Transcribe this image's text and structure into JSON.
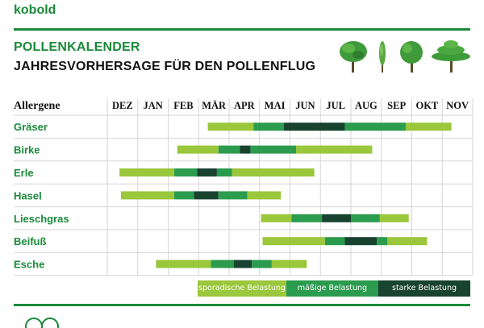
{
  "brand": "kobold",
  "title": "POLLENKALENDER",
  "subtitle": "JAHRESVORHERSAGE FÜR DEN POLLENFLUG",
  "colors": {
    "brand": "#1a8a3a",
    "sporadic": "#9ac73b",
    "moderate": "#2b9b4e",
    "strong": "#17432f"
  },
  "icons": [
    "deciduous-tree-icon",
    "cypress-tree-icon",
    "round-tree-icon",
    "umbrella-tree-icon"
  ],
  "chart_data": {
    "type": "table",
    "row_header": "Allergene",
    "months": [
      "DEZ",
      "JAN",
      "FEB",
      "MÄR",
      "APR",
      "MAI",
      "JUN",
      "JUL",
      "AUG",
      "SEP",
      "OKT",
      "NOV"
    ],
    "levels": {
      "sporadic": "sporadische Belastung",
      "moderate": "mäßige Belastung",
      "strong": "starke Belastung"
    },
    "legend_order": [
      "sporadic",
      "moderate",
      "strong"
    ],
    "units_note": "start/end in months from start of DEZ column (0 = early Dec, 12 = end of Nov)",
    "allergens": [
      {
        "name": "Gräser",
        "segments": [
          {
            "level": "sporadic",
            "start": 3.3,
            "end": 4.8
          },
          {
            "level": "moderate",
            "start": 4.8,
            "end": 5.8
          },
          {
            "level": "strong",
            "start": 5.8,
            "end": 7.8
          },
          {
            "level": "moderate",
            "start": 7.8,
            "end": 9.8
          },
          {
            "level": "sporadic",
            "start": 9.8,
            "end": 11.3
          }
        ]
      },
      {
        "name": "Birke",
        "segments": [
          {
            "level": "sporadic",
            "start": 2.3,
            "end": 3.65
          },
          {
            "level": "moderate",
            "start": 3.65,
            "end": 4.35
          },
          {
            "level": "strong",
            "start": 4.35,
            "end": 4.7
          },
          {
            "level": "moderate",
            "start": 4.7,
            "end": 6.2
          },
          {
            "level": "sporadic",
            "start": 6.2,
            "end": 8.7
          }
        ]
      },
      {
        "name": "Erle",
        "segments": [
          {
            "level": "sporadic",
            "start": 0.4,
            "end": 2.2
          },
          {
            "level": "moderate",
            "start": 2.2,
            "end": 2.95
          },
          {
            "level": "strong",
            "start": 2.95,
            "end": 3.6
          },
          {
            "level": "moderate",
            "start": 3.6,
            "end": 4.1
          },
          {
            "level": "sporadic",
            "start": 4.1,
            "end": 6.8
          }
        ]
      },
      {
        "name": "Hasel",
        "segments": [
          {
            "level": "sporadic",
            "start": 0.45,
            "end": 2.2
          },
          {
            "level": "moderate",
            "start": 2.2,
            "end": 2.85
          },
          {
            "level": "strong",
            "start": 2.85,
            "end": 3.65
          },
          {
            "level": "moderate",
            "start": 3.65,
            "end": 4.6
          },
          {
            "level": "sporadic",
            "start": 4.6,
            "end": 5.7
          }
        ]
      },
      {
        "name": "Lieschgras",
        "segments": [
          {
            "level": "sporadic",
            "start": 5.05,
            "end": 6.05
          },
          {
            "level": "moderate",
            "start": 6.05,
            "end": 7.05
          },
          {
            "level": "strong",
            "start": 7.05,
            "end": 8.0
          },
          {
            "level": "moderate",
            "start": 8.0,
            "end": 8.95
          },
          {
            "level": "sporadic",
            "start": 8.95,
            "end": 9.9
          }
        ]
      },
      {
        "name": "Beifuß",
        "segments": [
          {
            "level": "sporadic",
            "start": 5.1,
            "end": 7.15
          },
          {
            "level": "moderate",
            "start": 7.15,
            "end": 7.8
          },
          {
            "level": "strong",
            "start": 7.8,
            "end": 8.85
          },
          {
            "level": "moderate",
            "start": 8.85,
            "end": 9.2
          },
          {
            "level": "sporadic",
            "start": 9.2,
            "end": 10.5
          }
        ]
      },
      {
        "name": "Esche",
        "segments": [
          {
            "level": "sporadic",
            "start": 1.6,
            "end": 3.4
          },
          {
            "level": "moderate",
            "start": 3.4,
            "end": 4.15
          },
          {
            "level": "strong",
            "start": 4.15,
            "end": 4.75
          },
          {
            "level": "moderate",
            "start": 4.75,
            "end": 5.4
          },
          {
            "level": "sporadic",
            "start": 5.4,
            "end": 6.55
          }
        ]
      }
    ]
  }
}
